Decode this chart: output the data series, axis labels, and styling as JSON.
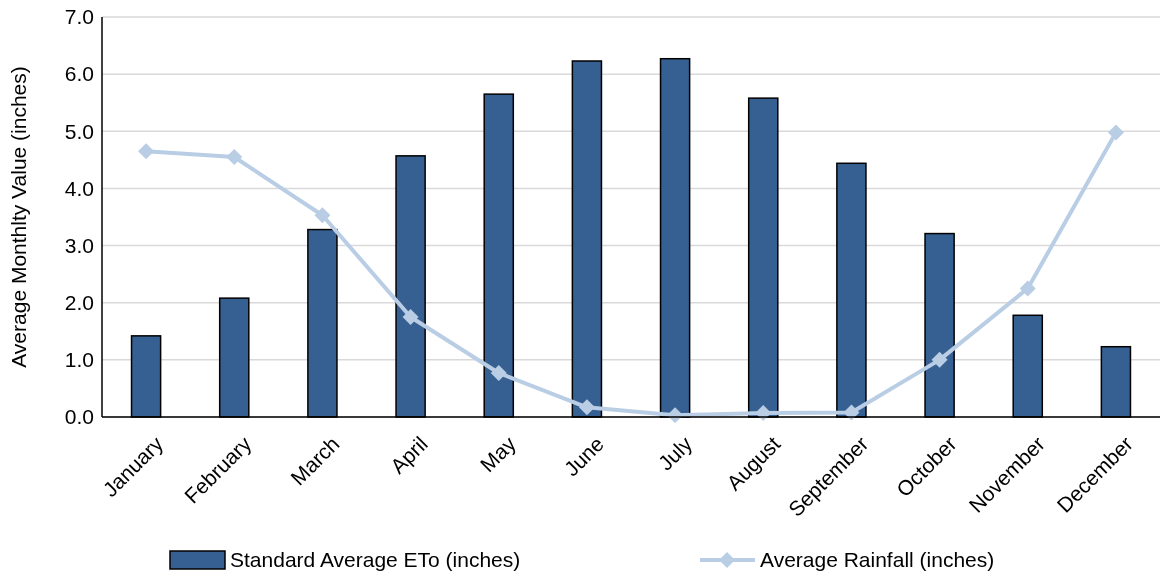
{
  "chart_data": {
    "type": "bar",
    "ylabel": "Average Monthlty Value (inches)",
    "categories": [
      "January",
      "February",
      "March",
      "April",
      "May",
      "June",
      "July",
      "August",
      "September",
      "October",
      "November",
      "December"
    ],
    "series": [
      {
        "name": "Standard Average ETo (inches)",
        "color": "#376092",
        "values": [
          1.42,
          2.08,
          3.28,
          4.57,
          5.65,
          6.23,
          6.27,
          5.58,
          4.44,
          3.21,
          1.78,
          1.23
        ]
      },
      {
        "name": "Average Rainfall (inches)",
        "type": "line",
        "color": "#b9cde5",
        "marker": "diamond",
        "values": [
          4.65,
          4.55,
          3.53,
          1.75,
          0.77,
          0.17,
          0.03,
          0.07,
          0.08,
          1.0,
          2.25,
          4.98
        ]
      }
    ],
    "ylim": [
      0,
      7
    ],
    "yticks": [
      {
        "value": 0,
        "label": "0.0"
      },
      {
        "value": 1,
        "label": "1.0"
      },
      {
        "value": 2,
        "label": "2.0"
      },
      {
        "value": 3,
        "label": "3.0"
      },
      {
        "value": 4,
        "label": "4.0"
      },
      {
        "value": 5,
        "label": "5.0"
      },
      {
        "value": 6,
        "label": "6.0"
      },
      {
        "value": 7,
        "label": "7.0"
      }
    ],
    "grid": "y",
    "legend": "bottom"
  }
}
